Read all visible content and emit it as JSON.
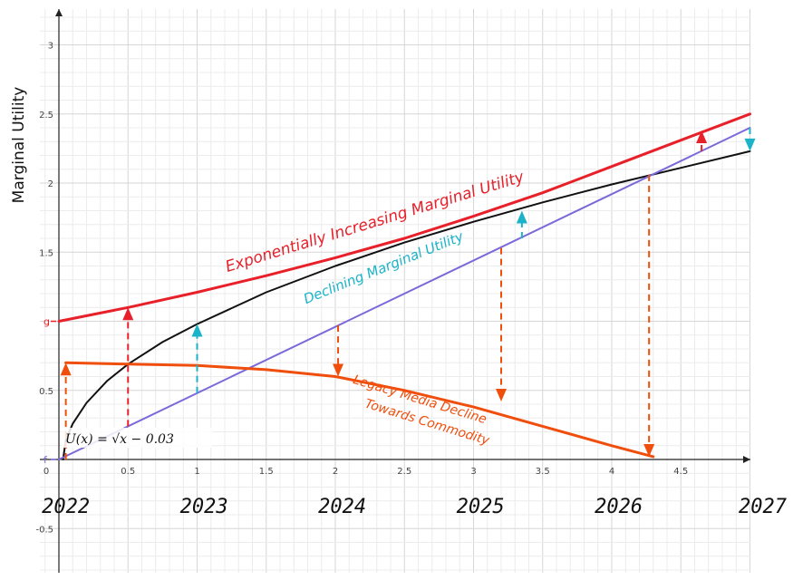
{
  "chart_data": {
    "type": "line",
    "ylabel": "Marginal Utility",
    "xlim": [
      -0.05,
      5
    ],
    "ylim": [
      -0.8,
      3.15
    ],
    "x_ticks": [
      0,
      0.5,
      1,
      1.5,
      2,
      2.5,
      3,
      3.5,
      4,
      4.5
    ],
    "x_tick_labels": [
      "0",
      "0.5",
      "1",
      "1.5",
      "2",
      "2.5",
      "3",
      "3.5",
      "4",
      "4.5"
    ],
    "y_ticks": [
      -0.5,
      0.5,
      1.5,
      2,
      2.5,
      3
    ],
    "y_tick_labels": [
      "-0.5",
      "0.5",
      "1.5",
      "2",
      "2.5",
      "3"
    ],
    "year_labels": [
      {
        "x": 0.05,
        "text": "2022"
      },
      {
        "x": 1.05,
        "text": "2023"
      },
      {
        "x": 2.05,
        "text": "2024"
      },
      {
        "x": 3.05,
        "text": "2025"
      },
      {
        "x": 4.05,
        "text": "2026"
      },
      {
        "x": 5.05,
        "text": "2027"
      }
    ],
    "grid": true,
    "colors": {
      "red": "#e8202a",
      "black": "#111111",
      "blue": "#7b68d9",
      "orange": "#f04e0c",
      "cyan": "#1ab3c8",
      "grid_minor": "#ececec",
      "grid_major": "#d6d6d6",
      "axis": "#222222"
    },
    "series": [
      {
        "key": "exp",
        "x": [
          0,
          0.5,
          1,
          1.5,
          2,
          2.5,
          3,
          3.5,
          4,
          4.5,
          5
        ],
        "y": [
          1,
          1.1,
          1.21,
          1.33,
          1.46,
          1.6,
          1.76,
          1.93,
          2.12,
          2.31,
          2.5
        ]
      },
      {
        "key": "sqrt",
        "x": [
          0.03,
          0.05,
          0.1,
          0.2,
          0.35,
          0.5,
          0.75,
          1,
          1.5,
          2,
          2.5,
          3,
          3.5,
          4,
          4.5,
          5
        ],
        "y": [
          0,
          0.14,
          0.26,
          0.41,
          0.57,
          0.69,
          0.85,
          0.98,
          1.21,
          1.4,
          1.57,
          1.72,
          1.86,
          1.99,
          2.11,
          2.23
        ]
      },
      {
        "key": "linear",
        "x": [
          0,
          5
        ],
        "y": [
          0,
          2.4
        ]
      },
      {
        "key": "legacy",
        "x": [
          0.05,
          0.5,
          1,
          1.5,
          2,
          2.5,
          3,
          3.5,
          4,
          4.3
        ],
        "y": [
          0.7,
          0.69,
          0.68,
          0.65,
          0.6,
          0.5,
          0.38,
          0.24,
          0.1,
          0.02
        ]
      }
    ],
    "arrows": [
      {
        "x": 0.05,
        "y1": 0,
        "y2": 0.7,
        "color": "orange",
        "dir": "up"
      },
      {
        "x": 0.5,
        "y1": 0.24,
        "y2": 1.1,
        "color": "red",
        "dir": "up"
      },
      {
        "x": 1,
        "y1": 0.48,
        "y2": 0.98,
        "color": "cyan",
        "dir": "up"
      },
      {
        "x": 2.02,
        "y1": 0.97,
        "y2": 0.6,
        "color": "orange",
        "dir": "down"
      },
      {
        "x": 3.2,
        "y1": 1.53,
        "y2": 0.42,
        "color": "orange",
        "dir": "down"
      },
      {
        "x": 3.35,
        "y1": 1.6,
        "y2": 1.8,
        "color": "cyan",
        "dir": "up"
      },
      {
        "x": 4.27,
        "y1": 2.06,
        "y2": 0.02,
        "color": "orange",
        "dir": "down"
      },
      {
        "x": 4.65,
        "y1": 2.23,
        "y2": 2.38,
        "color": "red",
        "dir": "up"
      },
      {
        "x": 5,
        "y1": 2.4,
        "y2": 2.23,
        "color": "cyan",
        "dir": "down"
      }
    ],
    "point_labels": [
      {
        "text": "g",
        "x": 0,
        "y": 1
      },
      {
        "text": "f",
        "x": 0,
        "y": 0
      }
    ],
    "annotations": {
      "exponential": "Exponentially Increasing Marginal Utility",
      "declining": "Declining Marginal Utility",
      "legacy_line1": "Legacy Media Decline",
      "legacy_line2": "Towards Commodity",
      "formula": "U(x) = √x − 0.03"
    }
  }
}
